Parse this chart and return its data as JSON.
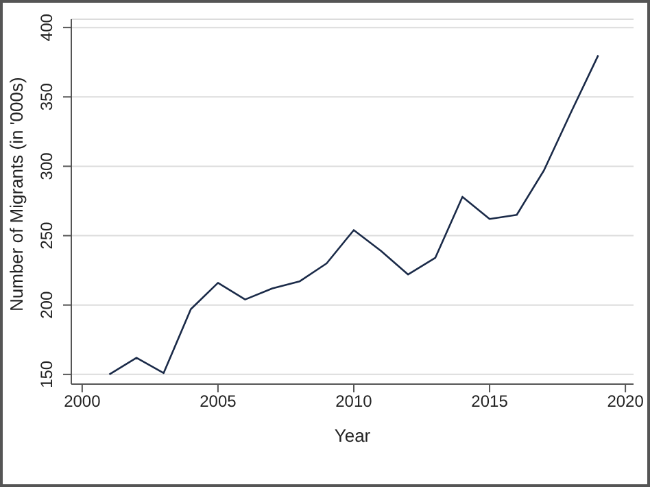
{
  "chart_data": {
    "type": "line",
    "xlabel": "Year",
    "ylabel": "Number of Migrants (in '000s)",
    "x": [
      2001,
      2002,
      2003,
      2004,
      2005,
      2006,
      2007,
      2008,
      2009,
      2010,
      2011,
      2012,
      2013,
      2014,
      2015,
      2016,
      2017,
      2018,
      2019
    ],
    "series": [
      {
        "color": "#1a2a48",
        "values": [
          150,
          162,
          151,
          197,
          216,
          204,
          212,
          217,
          230,
          254,
          239,
          222,
          234,
          278,
          262,
          265,
          297,
          339,
          380
        ]
      }
    ],
    "xlim": [
      1999.6,
      2020.3
    ],
    "xticks": [
      2000,
      2005,
      2010,
      2015,
      2020
    ],
    "ylim": [
      143,
      406
    ],
    "yticks": [
      150,
      200,
      250,
      300,
      350,
      400
    ],
    "grid": "y",
    "legend": false,
    "marker": "none",
    "line_style": "solid"
  }
}
